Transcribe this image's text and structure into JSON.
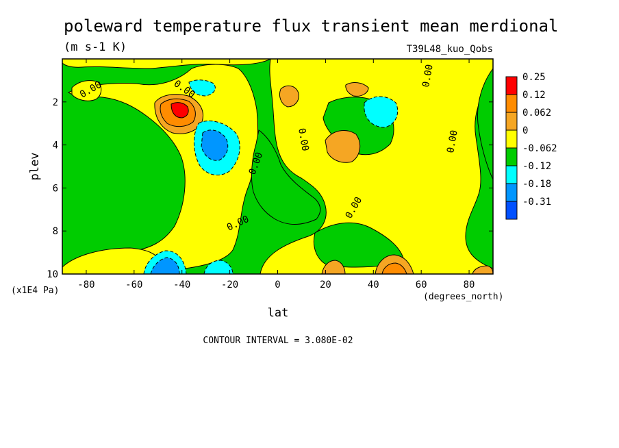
{
  "chart_data": {
    "type": "heatmap",
    "title": "poleward temperature flux transient mean merdional",
    "units": "(m s-1 K)",
    "run_label": "T39L48_kuo_Qobs",
    "xlabel": "lat",
    "x_units": "(degrees_north)",
    "ylabel": "plev",
    "y_units": "(x1E4 Pa)",
    "xlim": [
      -90,
      90
    ],
    "ylim": [
      10,
      0
    ],
    "x_ticks": [
      -80,
      -60,
      -40,
      -20,
      0,
      20,
      40,
      60,
      80
    ],
    "x_tick_labels": [
      "-80",
      "-60",
      "-40",
      "-20",
      "0",
      "20",
      "40",
      "60",
      "80"
    ],
    "y_ticks": [
      2,
      4,
      6,
      8,
      10
    ],
    "y_tick_labels": [
      "2",
      "4",
      "6",
      "8",
      "10"
    ],
    "contour_interval_text": "CONTOUR INTERVAL = 3.080E-02",
    "contour_label": "0.00",
    "legend": [
      {
        "label": "0.25",
        "color": "#ff0000"
      },
      {
        "label": "0.12",
        "color": "#ff8c00"
      },
      {
        "label": "0.062",
        "color": "#f5a623"
      },
      {
        "label": "0",
        "color": "#ffff00"
      },
      {
        "label": "-0.062",
        "color": "#00cc00"
      },
      {
        "label": "-0.12",
        "color": "#00ffff"
      },
      {
        "label": "-0.18",
        "color": "#0096ff"
      },
      {
        "label": "-0.31",
        "color": "#0050ff"
      }
    ],
    "background_color": "#00cc00",
    "features": [
      {
        "sign": "negative",
        "lat": [
          -90,
          -82
        ],
        "plev": [
          0,
          2
        ],
        "level": "-0.062"
      },
      {
        "sign": "positive",
        "lat": [
          -85,
          -62
        ],
        "plev": [
          0.5,
          4
        ],
        "level": "0"
      },
      {
        "sign": "positive",
        "lat": [
          -62,
          -25
        ],
        "plev": [
          0.5,
          4.8
        ],
        "level": "0"
      },
      {
        "sign": "positive",
        "lat": [
          -52,
          -34
        ],
        "plev": [
          1.6,
          3.4
        ],
        "level": "0.062"
      },
      {
        "sign": "positive",
        "lat": [
          -48,
          -37
        ],
        "plev": [
          2.1,
          3.1
        ],
        "level": "0.12"
      },
      {
        "sign": "positive",
        "lat": [
          -44,
          -38
        ],
        "plev": [
          2.3,
          2.9
        ],
        "level": "0.25"
      },
      {
        "sign": "negative",
        "lat": [
          -36,
          -18
        ],
        "plev": [
          3.0,
          5.6
        ],
        "level": "-0.12"
      },
      {
        "sign": "negative",
        "lat": [
          -32,
          -22
        ],
        "plev": [
          3.5,
          4.9
        ],
        "level": "-0.18"
      },
      {
        "sign": "negative",
        "lat": [
          -40,
          -25
        ],
        "plev": [
          1.0,
          2.0
        ],
        "level": "-0.12"
      },
      {
        "sign": "positive",
        "lat": [
          0,
          90
        ],
        "plev": [
          0,
          10
        ],
        "level": "0"
      },
      {
        "sign": "positive",
        "lat": [
          18,
          36
        ],
        "plev": [
          3.0,
          5.0
        ],
        "level": "0.062"
      },
      {
        "sign": "positive",
        "lat": [
          0,
          8
        ],
        "plev": [
          1.2,
          2.6
        ],
        "level": "0.062"
      },
      {
        "sign": "positive",
        "lat": [
          28,
          38
        ],
        "plev": [
          1.0,
          1.9
        ],
        "level": "0.062"
      },
      {
        "sign": "negative",
        "lat": [
          36,
          52
        ],
        "plev": [
          1.4,
          3.3
        ],
        "level": "-0.12"
      },
      {
        "sign": "negative",
        "lat": [
          70,
          90
        ],
        "plev": [
          0.5,
          8.5
        ],
        "level": "-0.062"
      },
      {
        "sign": "negative",
        "lat": [
          -50,
          -38
        ],
        "plev": [
          9.2,
          10
        ],
        "level": "-0.18"
      },
      {
        "sign": "negative",
        "lat": [
          -32,
          -20
        ],
        "plev": [
          9.3,
          10
        ],
        "level": "-0.12"
      },
      {
        "sign": "positive",
        "lat": [
          20,
          34
        ],
        "plev": [
          9.4,
          10
        ],
        "level": "0.062"
      },
      {
        "sign": "positive",
        "lat": [
          38,
          56
        ],
        "plev": [
          9.3,
          10
        ],
        "level": "0.12"
      },
      {
        "sign": "positive",
        "lat": [
          78,
          90
        ],
        "plev": [
          9.6,
          10
        ],
        "level": "0.062"
      }
    ]
  }
}
